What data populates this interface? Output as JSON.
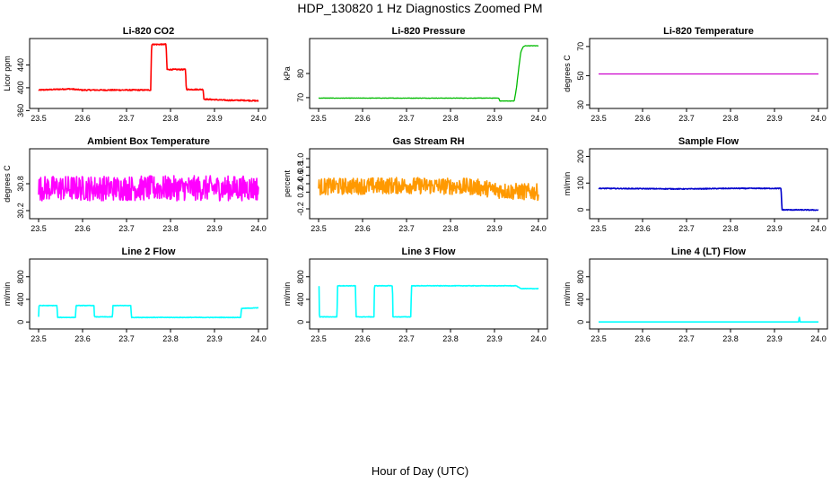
{
  "page": {
    "title": "HDP_130820  1 Hz Diagnostics Zoomed PM",
    "xlabel": "Hour of Day (UTC)"
  },
  "chart_data": [
    {
      "id": "co2",
      "type": "line",
      "title": "Li-820 CO2",
      "xlabel": "",
      "ylabel": "Licor ppm",
      "color": "#ff0000",
      "xlim": [
        23.5,
        24.0
      ],
      "ylim": [
        370,
        480
      ],
      "xticks": [
        "23.5",
        "23.6",
        "23.7",
        "23.8",
        "23.9",
        "24.0"
      ],
      "yticks": [
        "360",
        "400",
        "440"
      ],
      "ytick_values": [
        360,
        400,
        440
      ],
      "noise": 1.0,
      "x": [
        23.5,
        23.535,
        23.57,
        23.6,
        23.65,
        23.7,
        23.75,
        23.755,
        23.757,
        23.79,
        23.792,
        23.834,
        23.836,
        23.874,
        23.876,
        23.93,
        23.96,
        23.965,
        24.0
      ],
      "y": [
        396,
        397,
        398,
        396,
        396,
        396,
        396,
        396,
        476,
        476,
        432,
        432,
        397,
        397,
        380,
        378,
        378,
        378,
        377
      ]
    },
    {
      "id": "pressure",
      "type": "line",
      "title": "Li-820 Pressure",
      "xlabel": "",
      "ylabel": "kPa",
      "color": "#00bb00",
      "xlim": [
        23.5,
        24.0
      ],
      "ylim": [
        67,
        93
      ],
      "xticks": [
        "23.5",
        "23.6",
        "23.7",
        "23.8",
        "23.9",
        "24.0"
      ],
      "yticks": [
        "70",
        "80"
      ],
      "ytick_values": [
        70,
        80
      ],
      "noise": 0.08,
      "x": [
        23.5,
        23.9,
        23.91,
        23.912,
        23.945,
        23.95,
        23.955,
        23.96,
        23.965,
        23.97,
        24.0
      ],
      "y": [
        69.8,
        69.8,
        69.8,
        68.6,
        68.6,
        74.0,
        82.0,
        89.0,
        91.0,
        91.5,
        91.5
      ]
    },
    {
      "id": "licor-temp",
      "type": "line",
      "title": "Li-820 Temperature",
      "xlabel": "",
      "ylabel": "degrees C",
      "color": "#cc00cc",
      "xlim": [
        23.5,
        24.0
      ],
      "ylim": [
        30,
        73
      ],
      "xticks": [
        "23.5",
        "23.6",
        "23.7",
        "23.8",
        "23.9",
        "24.0"
      ],
      "yticks": [
        "30",
        "50",
        "70"
      ],
      "ytick_values": [
        30,
        50,
        70
      ],
      "noise": 0.0,
      "x": [
        23.5,
        24.0
      ],
      "y": [
        51.2,
        51.2
      ]
    },
    {
      "id": "ambient-temp",
      "type": "line",
      "title": "Ambient Box Temperature",
      "xlabel": "",
      "ylabel": "degrees C",
      "color": "#ff00ff",
      "xlim": [
        23.5,
        24.0
      ],
      "ylim": [
        30.1,
        31.5
      ],
      "xticks": [
        "23.5",
        "23.6",
        "23.7",
        "23.8",
        "23.9",
        "24.0"
      ],
      "yticks": [
        "30.2",
        "30.8"
      ],
      "ytick_values": [
        30.2,
        30.8
      ],
      "noise": 0.28,
      "x": [
        23.5,
        24.0
      ],
      "y": [
        30.7,
        30.7
      ]
    },
    {
      "id": "gas-rh",
      "type": "line",
      "title": "Gas Stream RH",
      "xlabel": "",
      "ylabel": "percent",
      "color": "#ff9900",
      "xlim": [
        23.5,
        24.0
      ],
      "ylim": [
        -0.35,
        1.15
      ],
      "xticks": [
        "23.5",
        "23.6",
        "23.7",
        "23.8",
        "23.9",
        "24.0"
      ],
      "yticks": [
        "-0.2",
        "0.2",
        "0.4",
        "0.6",
        "0.8",
        "1.0"
      ],
      "ytick_values": [
        -0.2,
        0.2,
        0.4,
        0.6,
        0.8,
        1.0
      ],
      "noise": 0.2,
      "x": [
        23.5,
        23.7,
        23.85,
        23.93,
        24.0
      ],
      "y": [
        0.33,
        0.36,
        0.33,
        0.22,
        0.2
      ]
    },
    {
      "id": "sample-flow",
      "type": "line",
      "title": "Sample Flow",
      "xlabel": "",
      "ylabel": "ml/min",
      "color": "#0000cc",
      "xlim": [
        23.5,
        24.0
      ],
      "ylim": [
        -20,
        215
      ],
      "xticks": [
        "23.5",
        "23.6",
        "23.7",
        "23.8",
        "23.9",
        "24.0"
      ],
      "yticks": [
        "0",
        "100",
        "200"
      ],
      "ytick_values": [
        0,
        100,
        200
      ],
      "noise": 1.5,
      "x": [
        23.5,
        23.6,
        23.7,
        23.8,
        23.915,
        23.917,
        23.92,
        24.0
      ],
      "y": [
        80,
        79,
        78,
        80,
        80,
        0,
        0,
        -1
      ]
    },
    {
      "id": "line2-flow",
      "type": "line",
      "title": "Line 2 Flow",
      "xlabel": "",
      "ylabel": "ml/min",
      "color": "#00ffff",
      "xlim": [
        23.5,
        24.0
      ],
      "ylim": [
        -60,
        1050
      ],
      "xticks": [
        "23.5",
        "23.6",
        "23.7",
        "23.8",
        "23.9",
        "24.0"
      ],
      "yticks": [
        "0",
        "400",
        "800"
      ],
      "ytick_values": [
        0,
        400,
        800
      ],
      "noise": 4,
      "x": [
        23.5,
        23.501,
        23.542,
        23.543,
        23.584,
        23.585,
        23.626,
        23.627,
        23.668,
        23.669,
        23.71,
        23.711,
        23.95,
        23.96,
        23.961,
        24.0
      ],
      "y": [
        90,
        290,
        290,
        80,
        80,
        290,
        290,
        90,
        90,
        290,
        290,
        80,
        80,
        80,
        240,
        250
      ]
    },
    {
      "id": "line3-flow",
      "type": "line",
      "title": "Line 3 Flow",
      "xlabel": "",
      "ylabel": "ml/min",
      "color": "#00ffff",
      "xlim": [
        23.5,
        24.0
      ],
      "ylim": [
        -60,
        1050
      ],
      "xticks": [
        "23.5",
        "23.6",
        "23.7",
        "23.8",
        "23.9",
        "24.0"
      ],
      "yticks": [
        "0",
        "400",
        "800"
      ],
      "ytick_values": [
        0,
        400,
        800
      ],
      "noise": 4,
      "x": [
        23.5,
        23.501,
        23.502,
        23.542,
        23.543,
        23.584,
        23.585,
        23.626,
        23.627,
        23.668,
        23.669,
        23.71,
        23.711,
        23.95,
        23.96,
        24.0
      ],
      "y": [
        620,
        620,
        90,
        90,
        640,
        640,
        90,
        90,
        640,
        640,
        90,
        90,
        640,
        640,
        590,
        590
      ]
    },
    {
      "id": "line4-flow",
      "type": "line",
      "title": "Line 4 (LT) Flow",
      "xlabel": "",
      "ylabel": "ml/min",
      "color": "#00ffff",
      "xlim": [
        23.5,
        24.0
      ],
      "ylim": [
        -60,
        1050
      ],
      "xticks": [
        "23.5",
        "23.6",
        "23.7",
        "23.8",
        "23.9",
        "24.0"
      ],
      "yticks": [
        "0",
        "400",
        "800"
      ],
      "ytick_values": [
        0,
        400,
        800
      ],
      "noise": 0.5,
      "x": [
        23.5,
        23.955,
        23.956,
        23.957,
        23.958,
        24.0
      ],
      "y": [
        0,
        0,
        80,
        80,
        0,
        0
      ]
    }
  ]
}
